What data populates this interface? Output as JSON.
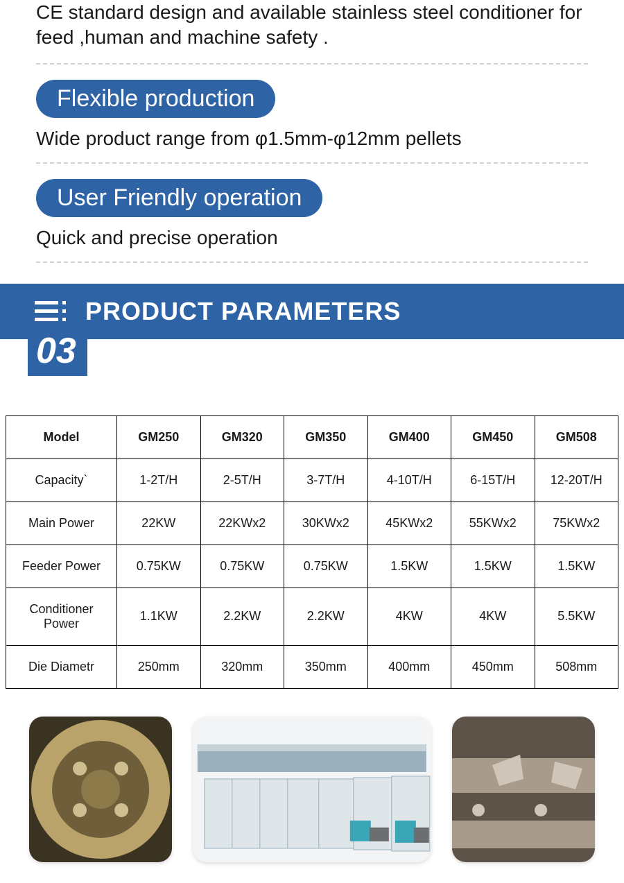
{
  "sections": [
    {
      "desc": "CE standard design and available stainless steel conditioner for feed ,human and machine safety ."
    },
    {
      "pill": "Flexible production",
      "body": "Wide product range from φ1.5mm-φ12mm pellets"
    },
    {
      "pill": "User Friendly operation",
      "body": "Quick and precise operation"
    }
  ],
  "banner": {
    "title": "PRODUCT PARAMETERS",
    "number": "03",
    "bg_color": "#2e63a6",
    "title_color": "#ffffff"
  },
  "param_table": {
    "type": "table",
    "columns": [
      "Model",
      "GM250",
      "GM320",
      "GM350",
      "GM400",
      "GM450",
      "GM508"
    ],
    "rows": [
      [
        "Capacity`",
        "1-2T/H",
        "2-5T/H",
        "3-7T/H",
        "4-10T/H",
        "6-15T/H",
        "12-20T/H"
      ],
      [
        "Main Power",
        "22KW",
        "22KWx2",
        "30KWx2",
        "45KWx2",
        "55KWx2",
        "75KWx2"
      ],
      [
        "Feeder Power",
        "0.75KW",
        "0.75KW",
        "0.75KW",
        "1.5KW",
        "1.5KW",
        "1.5KW"
      ],
      [
        "Conditioner Power",
        "1.1KW",
        "2.2KW",
        "2.2KW",
        "4KW",
        "4KW",
        "5.5KW"
      ],
      [
        "Die Diametr",
        "250mm",
        "320mm",
        "350mm",
        "400mm",
        "450mm",
        "508mm"
      ]
    ],
    "border_color": "#000000",
    "header_fontweight": 700,
    "cell_fontsize": 18,
    "background_color": "#ffffff"
  },
  "gallery": {
    "items": [
      {
        "name": "die-closeup-photo",
        "palette": [
          "#b9a36a",
          "#6e5e3a",
          "#3a3322"
        ]
      },
      {
        "name": "pellet-mill-lineup-photo",
        "palette": [
          "#dfe6ea",
          "#9ab0bd",
          "#3aa6b6",
          "#6b6f72"
        ]
      },
      {
        "name": "conditioner-internal-photo",
        "palette": [
          "#a89b8c",
          "#5e5348",
          "#3a332c"
        ]
      }
    ],
    "border_radius": 20
  },
  "colors": {
    "accent": "#2e63a6",
    "text": "#1a1a1a",
    "divider": "#d0d0d0"
  }
}
